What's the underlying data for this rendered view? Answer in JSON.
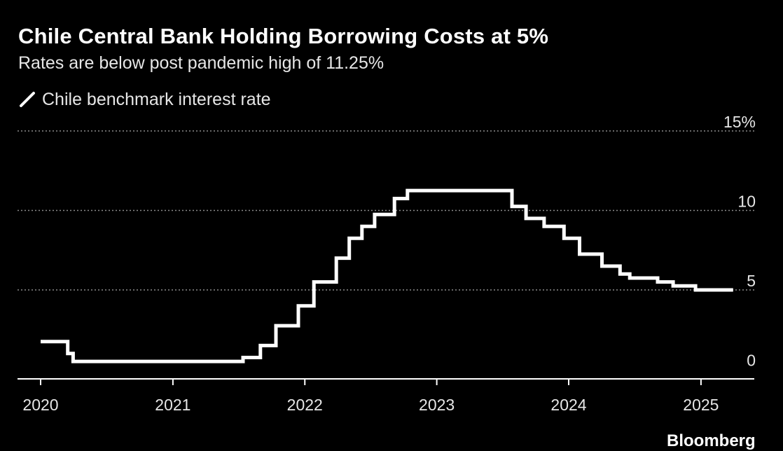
{
  "title": "Chile Central Bank Holding Borrowing Costs at 5%",
  "subtitle": "Rates are below post pandemic high of 11.25%",
  "source": "Bloomberg",
  "colors": {
    "background": "#000000",
    "line": "#ffffff",
    "grid": "#8c8c8c",
    "text": "#e6e6e6"
  },
  "chart_data": {
    "type": "line",
    "step": true,
    "title": "Chile Central Bank Holding Borrowing Costs at 5%",
    "subtitle": "Rates are below post pandemic high of 11.25%",
    "xlabel": "",
    "ylabel": "",
    "x_ticks": [
      "2020",
      "2021",
      "2022",
      "2023",
      "2024",
      "2025"
    ],
    "y_ticks": [
      "0",
      "5",
      "10",
      "15%"
    ],
    "y_tick_values": [
      0,
      5,
      10,
      15
    ],
    "xlim": [
      "2019-10-01",
      "2025-12-31"
    ],
    "ylim": [
      -1,
      15
    ],
    "grid": "horizontal dotted",
    "legend_position": "top-left",
    "series": [
      {
        "name": "Chile benchmark interest rate",
        "x": [
          "2020-01-01",
          "2020-03-16",
          "2020-03-31",
          "2021-07-14",
          "2021-08-31",
          "2021-10-13",
          "2021-12-14",
          "2022-01-26",
          "2022-03-29",
          "2022-05-04",
          "2022-06-08",
          "2022-07-13",
          "2022-09-06",
          "2022-10-12",
          "2023-07-28",
          "2023-09-05",
          "2023-10-25",
          "2023-12-19",
          "2024-01-31",
          "2024-04-02",
          "2024-05-22",
          "2024-06-18",
          "2024-07-31",
          "2024-09-03",
          "2024-10-16",
          "2024-12-17",
          "2025-03-31"
        ],
        "y": [
          1.75,
          1.0,
          0.5,
          0.75,
          1.5,
          2.75,
          4.0,
          5.5,
          7.0,
          8.25,
          9.0,
          9.75,
          10.75,
          11.25,
          10.25,
          9.5,
          9.0,
          8.25,
          7.25,
          6.5,
          6.0,
          5.75,
          5.75,
          5.5,
          5.25,
          5.0,
          5.0
        ]
      }
    ]
  }
}
